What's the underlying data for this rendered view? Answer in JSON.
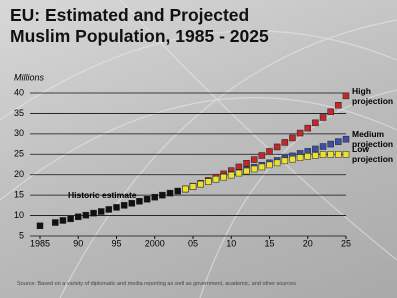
{
  "chart_data": {
    "type": "scatter",
    "title": "EU: Estimated and Projected Muslim Population, 1985 - 2025",
    "y_label": "Millions",
    "source": "Source: Based on a variety of diplomatic and media reporting as well as government, academic, and other sources",
    "xlim": [
      1985,
      2025
    ],
    "ylim": [
      5,
      40
    ],
    "xticks": [
      1985,
      {
        "value": 1990,
        "label": "90"
      },
      {
        "value": 1995,
        "label": "95"
      },
      2000,
      {
        "value": 2005,
        "label": "05"
      },
      {
        "value": 2010,
        "label": "10"
      },
      {
        "value": 2015,
        "label": "15"
      },
      {
        "value": 2020,
        "label": "20"
      },
      {
        "value": 2025,
        "label": "25"
      }
    ],
    "yticks": [
      5,
      10,
      15,
      20,
      25,
      30,
      35,
      40
    ],
    "grid": true,
    "series": [
      {
        "name": "Historic estimate",
        "color": "#111111",
        "x": [
          1985,
          1987,
          1988,
          1989,
          1990,
          1991,
          1992,
          1993,
          1994,
          1995,
          1996,
          1997,
          1998,
          1999,
          2000,
          2001,
          2002,
          2003
        ],
        "values": [
          7.5,
          8.3,
          8.8,
          9.2,
          9.7,
          10.1,
          10.6,
          11.0,
          11.5,
          12.0,
          12.5,
          13.0,
          13.5,
          14.0,
          14.5,
          15.0,
          15.5,
          16.0
        ]
      },
      {
        "name": "High projection",
        "color": "#c1272d",
        "x": [
          2004,
          2005,
          2006,
          2007,
          2008,
          2009,
          2010,
          2011,
          2012,
          2013,
          2014,
          2015,
          2016,
          2017,
          2018,
          2019,
          2020,
          2021,
          2022,
          2023,
          2024,
          2025
        ],
        "values": [
          16.5,
          17.2,
          17.9,
          18.6,
          19.4,
          20.2,
          21.0,
          21.9,
          22.8,
          23.7,
          24.7,
          25.7,
          26.8,
          27.9,
          29.0,
          30.2,
          31.4,
          32.7,
          34.0,
          35.4,
          37.0,
          39.3
        ]
      },
      {
        "name": "Medium projection",
        "color": "#3b4fa3",
        "x": [
          2004,
          2005,
          2006,
          2007,
          2008,
          2009,
          2010,
          2011,
          2012,
          2013,
          2014,
          2015,
          2016,
          2017,
          2018,
          2019,
          2020,
          2021,
          2022,
          2023,
          2024,
          2025
        ],
        "values": [
          16.5,
          17.1,
          17.7,
          18.3,
          18.9,
          19.5,
          20.1,
          20.6,
          21.2,
          21.8,
          22.3,
          22.9,
          23.5,
          24.0,
          24.6,
          25.2,
          25.7,
          26.3,
          26.9,
          27.5,
          28.1,
          28.7
        ]
      },
      {
        "name": "Low projection",
        "color": "#e9e233",
        "x": [
          2004,
          2005,
          2006,
          2007,
          2008,
          2009,
          2010,
          2011,
          2012,
          2013,
          2014,
          2015,
          2016,
          2017,
          2018,
          2019,
          2020,
          2021,
          2022,
          2023,
          2024,
          2025
        ],
        "values": [
          16.5,
          17.1,
          17.7,
          18.3,
          18.9,
          19.4,
          19.9,
          20.4,
          20.9,
          21.4,
          21.9,
          22.4,
          22.9,
          23.4,
          23.8,
          24.2,
          24.5,
          24.7,
          24.9,
          25.0,
          25.0,
          25.0
        ]
      }
    ]
  }
}
